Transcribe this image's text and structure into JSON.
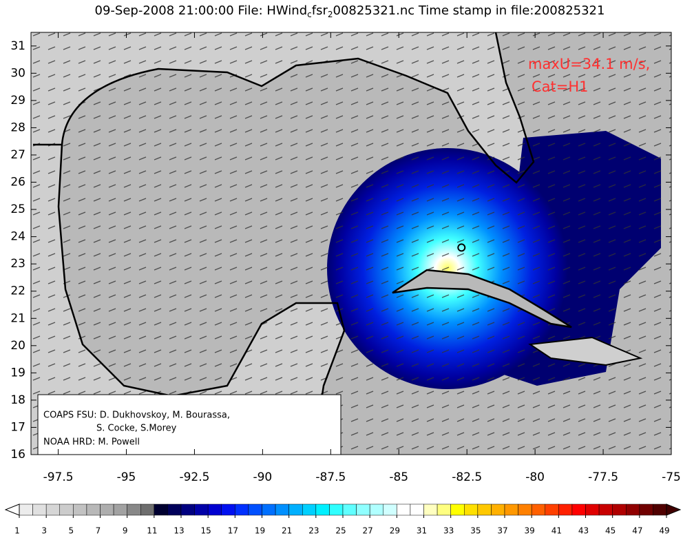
{
  "chart_data": {
    "type": "map",
    "title_parts": [
      "09-Sep-2008 21:00:00 File: HWind",
      "c",
      "fsr",
      "2",
      "00825321.nc Time stamp in file:200825321"
    ],
    "xlim": [
      -98.5,
      -75
    ],
    "ylim": [
      16,
      31.5
    ],
    "xticks": [
      -97.5,
      -95,
      -92.5,
      -90,
      -87.5,
      -85,
      -82.5,
      -80,
      -77.5,
      -75
    ],
    "yticks": [
      16,
      17,
      18,
      19,
      20,
      21,
      22,
      23,
      24,
      25,
      26,
      27,
      28,
      29,
      30,
      31
    ],
    "annotations": [
      "maxU=34.1 m/s,",
      "Cat=H1"
    ],
    "annotation_color": "#ff3030",
    "credits": [
      "COAPS FSU: D. Dukhovskoy, M. Bourassa,",
      "S. Cocke, S.Morey",
      "NOAA HRD:  M. Powell"
    ],
    "storm_center": {
      "x": -82.7,
      "y": 23.6
    },
    "colorbar": {
      "range": [
        1,
        49
      ],
      "ticks": [
        1,
        3,
        5,
        7,
        9,
        11,
        13,
        15,
        17,
        19,
        21,
        23,
        25,
        27,
        29,
        31,
        33,
        35,
        37,
        39,
        41,
        43,
        45,
        47,
        49
      ],
      "colors": [
        "#ececec",
        "#e0e0e0",
        "#d6d6d6",
        "#cccccc",
        "#c2c2c2",
        "#b8b8b8",
        "#aeaeae",
        "#a2a2a2",
        "#888888",
        "#6e6e6e",
        "#000030",
        "#00005a",
        "#000080",
        "#0000a8",
        "#0000d0",
        "#0010f0",
        "#0030ff",
        "#0050ff",
        "#0070ff",
        "#0090ff",
        "#00b0ff",
        "#00d0ff",
        "#00f0ff",
        "#30ffff",
        "#60ffff",
        "#90ffff",
        "#b0ffff",
        "#d0ffff",
        "#ffffff",
        "#ffffff",
        "#ffffc0",
        "#ffff80",
        "#ffff00",
        "#ffe000",
        "#ffc800",
        "#ffb000",
        "#ff9800",
        "#ff8000",
        "#ff6000",
        "#ff4000",
        "#ff2000",
        "#ff0000",
        "#e00000",
        "#c80000",
        "#b00000",
        "#900000",
        "#700000",
        "#500000"
      ]
    }
  }
}
